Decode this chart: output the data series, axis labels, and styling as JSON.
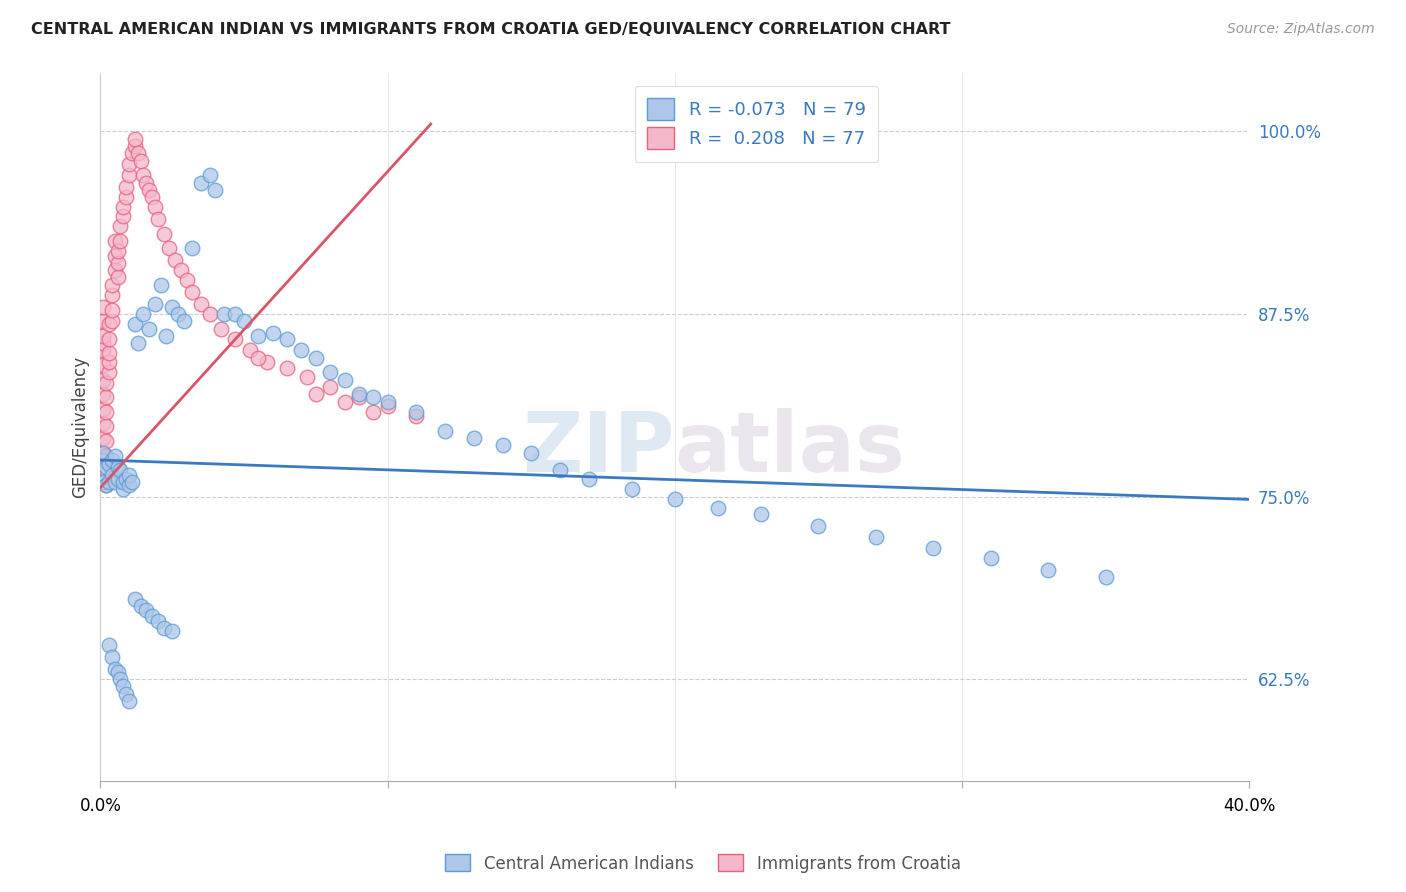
{
  "title": "CENTRAL AMERICAN INDIAN VS IMMIGRANTS FROM CROATIA GED/EQUIVALENCY CORRELATION CHART",
  "source": "Source: ZipAtlas.com",
  "ylabel": "GED/Equivalency",
  "yticks": [
    0.625,
    0.75,
    0.875,
    1.0
  ],
  "ytick_labels": [
    "62.5%",
    "75.0%",
    "87.5%",
    "100.0%"
  ],
  "xmin": 0.0,
  "xmax": 0.4,
  "ymin": 0.555,
  "ymax": 1.04,
  "legend_r_blue": "-0.073",
  "legend_n_blue": "79",
  "legend_r_pink": "0.208",
  "legend_n_pink": "77",
  "blue_color": "#aec6e8",
  "pink_color": "#f4b8cb",
  "blue_edge_color": "#5b9bd5",
  "pink_edge_color": "#e8607a",
  "blue_line_color": "#3a7abf",
  "pink_line_color": "#d9556a",
  "watermark": "ZIPAtlas",
  "blue_line_x0": 0.0,
  "blue_line_x1": 0.4,
  "blue_line_y0": 0.775,
  "blue_line_y1": 0.748,
  "pink_line_x0": 0.0,
  "pink_line_x1": 0.115,
  "pink_line_y0": 0.756,
  "pink_line_y1": 1.005,
  "blue_x": [
    0.001,
    0.001,
    0.001,
    0.002,
    0.002,
    0.003,
    0.003,
    0.004,
    0.004,
    0.005,
    0.005,
    0.006,
    0.006,
    0.007,
    0.008,
    0.008,
    0.009,
    0.01,
    0.01,
    0.011,
    0.012,
    0.013,
    0.015,
    0.017,
    0.019,
    0.021,
    0.023,
    0.025,
    0.027,
    0.029,
    0.032,
    0.035,
    0.038,
    0.04,
    0.043,
    0.047,
    0.05,
    0.055,
    0.06,
    0.065,
    0.07,
    0.075,
    0.08,
    0.085,
    0.09,
    0.095,
    0.1,
    0.11,
    0.12,
    0.13,
    0.14,
    0.15,
    0.16,
    0.17,
    0.185,
    0.2,
    0.215,
    0.23,
    0.25,
    0.27,
    0.29,
    0.31,
    0.33,
    0.35,
    0.003,
    0.004,
    0.005,
    0.006,
    0.007,
    0.008,
    0.009,
    0.01,
    0.012,
    0.014,
    0.016,
    0.018,
    0.02,
    0.022,
    0.025
  ],
  "blue_y": [
    0.76,
    0.775,
    0.78,
    0.758,
    0.77,
    0.76,
    0.772,
    0.765,
    0.775,
    0.76,
    0.778,
    0.762,
    0.77,
    0.768,
    0.755,
    0.76,
    0.762,
    0.758,
    0.765,
    0.76,
    0.868,
    0.855,
    0.875,
    0.865,
    0.882,
    0.895,
    0.86,
    0.88,
    0.875,
    0.87,
    0.92,
    0.965,
    0.97,
    0.96,
    0.875,
    0.875,
    0.87,
    0.86,
    0.862,
    0.858,
    0.85,
    0.845,
    0.835,
    0.83,
    0.82,
    0.818,
    0.815,
    0.808,
    0.795,
    0.79,
    0.785,
    0.78,
    0.768,
    0.762,
    0.755,
    0.748,
    0.742,
    0.738,
    0.73,
    0.722,
    0.715,
    0.708,
    0.7,
    0.695,
    0.648,
    0.64,
    0.632,
    0.63,
    0.625,
    0.62,
    0.615,
    0.61,
    0.68,
    0.675,
    0.672,
    0.668,
    0.665,
    0.66,
    0.658
  ],
  "pink_x": [
    0.001,
    0.001,
    0.001,
    0.001,
    0.001,
    0.001,
    0.001,
    0.001,
    0.001,
    0.001,
    0.001,
    0.001,
    0.001,
    0.002,
    0.002,
    0.002,
    0.002,
    0.002,
    0.002,
    0.002,
    0.002,
    0.003,
    0.003,
    0.003,
    0.003,
    0.003,
    0.004,
    0.004,
    0.004,
    0.004,
    0.005,
    0.005,
    0.005,
    0.006,
    0.006,
    0.006,
    0.007,
    0.007,
    0.008,
    0.008,
    0.009,
    0.009,
    0.01,
    0.01,
    0.011,
    0.012,
    0.012,
    0.013,
    0.014,
    0.015,
    0.016,
    0.017,
    0.018,
    0.019,
    0.02,
    0.022,
    0.024,
    0.026,
    0.028,
    0.03,
    0.032,
    0.035,
    0.038,
    0.042,
    0.047,
    0.052,
    0.058,
    0.065,
    0.072,
    0.08,
    0.09,
    0.1,
    0.11,
    0.055,
    0.075,
    0.085,
    0.095
  ],
  "pink_y": [
    0.77,
    0.78,
    0.79,
    0.8,
    0.81,
    0.82,
    0.83,
    0.84,
    0.85,
    0.855,
    0.86,
    0.87,
    0.88,
    0.758,
    0.768,
    0.778,
    0.788,
    0.798,
    0.808,
    0.818,
    0.828,
    0.835,
    0.842,
    0.848,
    0.858,
    0.868,
    0.87,
    0.878,
    0.888,
    0.895,
    0.905,
    0.915,
    0.925,
    0.9,
    0.91,
    0.918,
    0.925,
    0.935,
    0.942,
    0.948,
    0.955,
    0.962,
    0.97,
    0.978,
    0.985,
    0.99,
    0.995,
    0.985,
    0.98,
    0.97,
    0.965,
    0.96,
    0.955,
    0.948,
    0.94,
    0.93,
    0.92,
    0.912,
    0.905,
    0.898,
    0.89,
    0.882,
    0.875,
    0.865,
    0.858,
    0.85,
    0.842,
    0.838,
    0.832,
    0.825,
    0.818,
    0.812,
    0.805,
    0.845,
    0.82,
    0.815,
    0.808
  ]
}
